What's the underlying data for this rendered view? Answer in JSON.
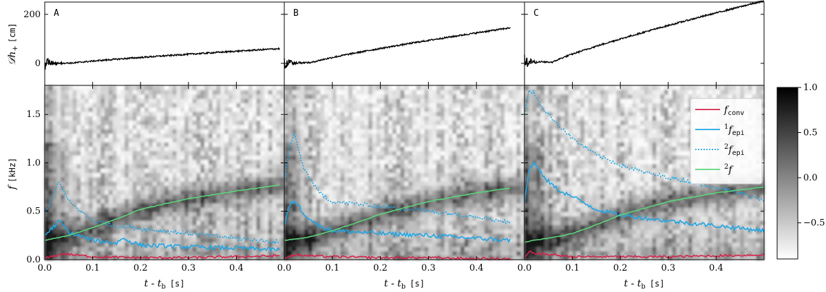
{
  "chart_data": {
    "type": "line",
    "title": "",
    "panels": [
      {
        "id": "A",
        "label": "A",
        "t_end": 0.49,
        "strain_end": 60
      },
      {
        "id": "B",
        "label": "B",
        "t_end": 0.47,
        "strain_end": 145
      },
      {
        "id": "C",
        "label": "C",
        "t_end": 0.5,
        "strain_end": 255
      }
    ],
    "strain_axis": {
      "ylabel": "𝒟h₊ [cm]",
      "ylabel_main": "𝒟h",
      "ylabel_sub": "+",
      "ylabel_unit": "[cm]",
      "ylim": [
        -90,
        250
      ],
      "ticks": [
        0,
        200
      ],
      "tick_labels": [
        "0",
        "200"
      ]
    },
    "spectrogram_axis": {
      "xlabel": "t - t",
      "xlabel_sub": "b",
      "xlabel_unit": "[s]",
      "ylabel": "f",
      "ylabel_unit": "[kHz]",
      "xlim": [
        0,
        0.5
      ],
      "ylim": [
        0,
        1.8
      ],
      "xticks": [
        0.0,
        0.1,
        0.2,
        0.3,
        0.4
      ],
      "xtick_labels": [
        "0.0",
        "0.1",
        "0.2",
        "0.3",
        "0.4"
      ],
      "yticks": [
        0.0,
        0.5,
        1.0,
        1.5
      ],
      "ytick_labels": [
        "0.0",
        "0.5",
        "1.0",
        "1.5"
      ]
    },
    "colorbar": {
      "range": [
        -0.9,
        1.0
      ],
      "ticks": [
        1.0,
        0.5,
        0.0,
        -0.5
      ],
      "tick_labels": [
        "1.0",
        "0.5",
        "0.0",
        "−0.5"
      ]
    },
    "legend": {
      "placement": "top-right of panel C",
      "entries": [
        {
          "key": "conv",
          "main": "f",
          "pre": "",
          "sub": "conv",
          "color": "#d6224a",
          "dash": false
        },
        {
          "key": "epi1",
          "main": "f",
          "pre": "1",
          "sub": "epi",
          "color": "#1ba6e6",
          "dash": false
        },
        {
          "key": "epi2",
          "main": "f",
          "pre": "2",
          "sub": "epi",
          "color": "#1ba6e6",
          "dash": true
        },
        {
          "key": "f2",
          "main": "f",
          "pre": "2",
          "sub": "",
          "color": "#5bd67a",
          "dash": false
        }
      ]
    },
    "series": {
      "A": {
        "conv": {
          "t": [
            0,
            0.02,
            0.04,
            0.06,
            0.1,
            0.2,
            0.3,
            0.4,
            0.49
          ],
          "f": [
            0.01,
            0.04,
            0.06,
            0.05,
            0.03,
            0.02,
            0.02,
            0.03,
            0.04
          ]
        },
        "epi1": {
          "t": [
            0,
            0.02,
            0.03,
            0.05,
            0.1,
            0.15,
            0.16,
            0.2,
            0.3,
            0.4,
            0.49
          ],
          "f": [
            0.25,
            0.35,
            0.4,
            0.28,
            0.2,
            0.17,
            0.22,
            0.15,
            0.13,
            0.12,
            0.1
          ]
        },
        "epi2": {
          "t": [
            0,
            0.015,
            0.03,
            0.05,
            0.08,
            0.1,
            0.15,
            0.2,
            0.3,
            0.4,
            0.49
          ],
          "f": [
            0.45,
            0.66,
            0.8,
            0.6,
            0.48,
            0.4,
            0.35,
            0.32,
            0.27,
            0.22,
            0.18
          ]
        },
        "f2": {
          "t": [
            0,
            0.05,
            0.1,
            0.15,
            0.2,
            0.3,
            0.4,
            0.49
          ],
          "f": [
            0.2,
            0.25,
            0.33,
            0.42,
            0.52,
            0.63,
            0.71,
            0.77
          ]
        }
      },
      "B": {
        "conv": {
          "t": [
            0,
            0.02,
            0.05,
            0.1,
            0.2,
            0.3,
            0.4,
            0.47
          ],
          "f": [
            0.02,
            0.05,
            0.04,
            0.03,
            0.02,
            0.02,
            0.01,
            0.01
          ]
        },
        "epi1": {
          "t": [
            0,
            0.01,
            0.02,
            0.04,
            0.07,
            0.1,
            0.2,
            0.3,
            0.4,
            0.47
          ],
          "f": [
            0.35,
            0.55,
            0.62,
            0.48,
            0.35,
            0.3,
            0.27,
            0.25,
            0.22,
            0.2
          ]
        },
        "epi2": {
          "t": [
            0,
            0.01,
            0.02,
            0.04,
            0.07,
            0.1,
            0.2,
            0.3,
            0.4,
            0.47
          ],
          "f": [
            0.8,
            1.15,
            1.3,
            0.95,
            0.7,
            0.6,
            0.55,
            0.5,
            0.45,
            0.38
          ]
        },
        "f2": {
          "t": [
            0,
            0.05,
            0.1,
            0.15,
            0.2,
            0.3,
            0.4,
            0.47
          ],
          "f": [
            0.2,
            0.23,
            0.3,
            0.38,
            0.47,
            0.6,
            0.69,
            0.74
          ]
        }
      },
      "C": {
        "conv": {
          "t": [
            0,
            0.01,
            0.03,
            0.06,
            0.1,
            0.2,
            0.3,
            0.4,
            0.5
          ],
          "f": [
            0.02,
            0.08,
            0.06,
            0.05,
            0.03,
            0.03,
            0.03,
            0.04,
            0.05
          ]
        },
        "epi1": {
          "t": [
            0,
            0.01,
            0.02,
            0.04,
            0.07,
            0.1,
            0.15,
            0.2,
            0.3,
            0.4,
            0.5
          ],
          "f": [
            0.6,
            0.95,
            1.0,
            0.85,
            0.72,
            0.65,
            0.52,
            0.46,
            0.4,
            0.35,
            0.3
          ]
        },
        "epi2": {
          "t": [
            0,
            0.01,
            0.02,
            0.04,
            0.07,
            0.1,
            0.15,
            0.2,
            0.25,
            0.3,
            0.4,
            0.5
          ],
          "f": [
            1.5,
            1.75,
            1.72,
            1.55,
            1.4,
            1.25,
            1.08,
            0.98,
            0.9,
            0.85,
            0.75,
            0.62
          ]
        },
        "f2": {
          "t": [
            0,
            0.02,
            0.05,
            0.1,
            0.15,
            0.2,
            0.3,
            0.4,
            0.5
          ],
          "f": [
            0.18,
            0.2,
            0.22,
            0.27,
            0.36,
            0.46,
            0.6,
            0.69,
            0.75
          ]
        }
      }
    }
  }
}
